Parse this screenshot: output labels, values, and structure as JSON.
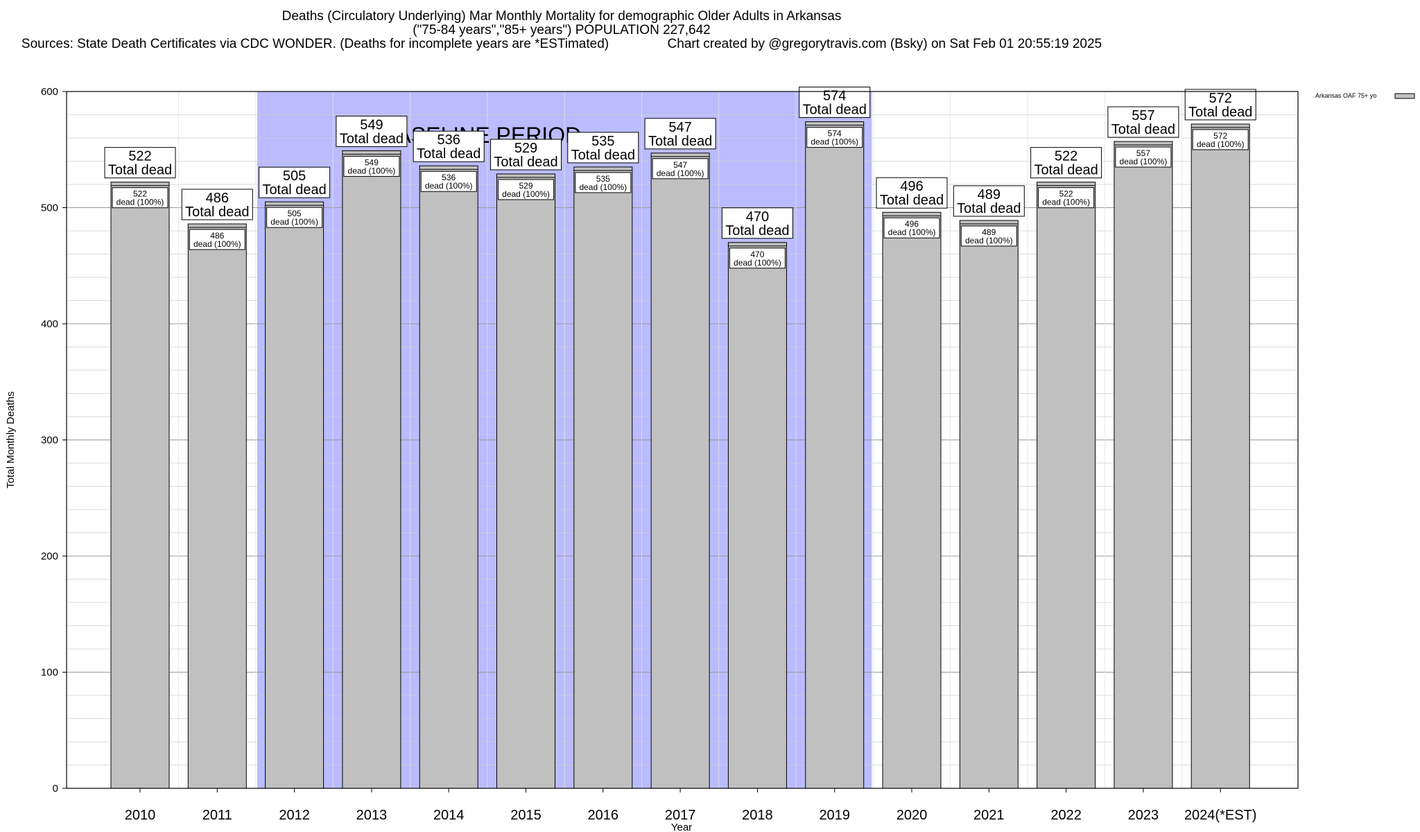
{
  "title_lines": [
    "Deaths (Circulatory Underlying) Mar Monthly Mortality for demographic Older Adults in Arkansas",
    "(\"75-84 years\",\"85+ years\") POPULATION 227,642",
    "Sources: State Death Certificates via CDC WONDER. (Deaths for incomplete years are *ESTimated)                Chart created by @gregorytravis.com (Bsky) on Sat Feb 01 20:55:19 2025"
  ],
  "chart_data": {
    "type": "bar",
    "categories": [
      "2010",
      "2011",
      "2012",
      "2013",
      "2014",
      "2015",
      "2016",
      "2017",
      "2018",
      "2019",
      "2020",
      "2021",
      "2022",
      "2023",
      "2024(*EST)"
    ],
    "series": [
      {
        "name": "Arkansas OAF 75+ yo",
        "values": [
          522,
          486,
          505,
          549,
          536,
          529,
          535,
          547,
          470,
          574,
          496,
          489,
          522,
          557,
          572
        ]
      }
    ],
    "xlabel": "Year",
    "ylabel": "Total Monthly Deaths",
    "ylim": [
      0,
      600
    ],
    "yticks": [
      0,
      100,
      200,
      300,
      400,
      500,
      600
    ],
    "grid": true,
    "legend_position": "top-right",
    "bar_color": "#c0c0c0",
    "baseline": {
      "label": "BASELINE PERIOD",
      "from": "2012",
      "to": "2019",
      "color": "#bbbbff"
    },
    "label_top_suffix": "Total dead",
    "label_inner_suffix": "dead (100%)"
  }
}
